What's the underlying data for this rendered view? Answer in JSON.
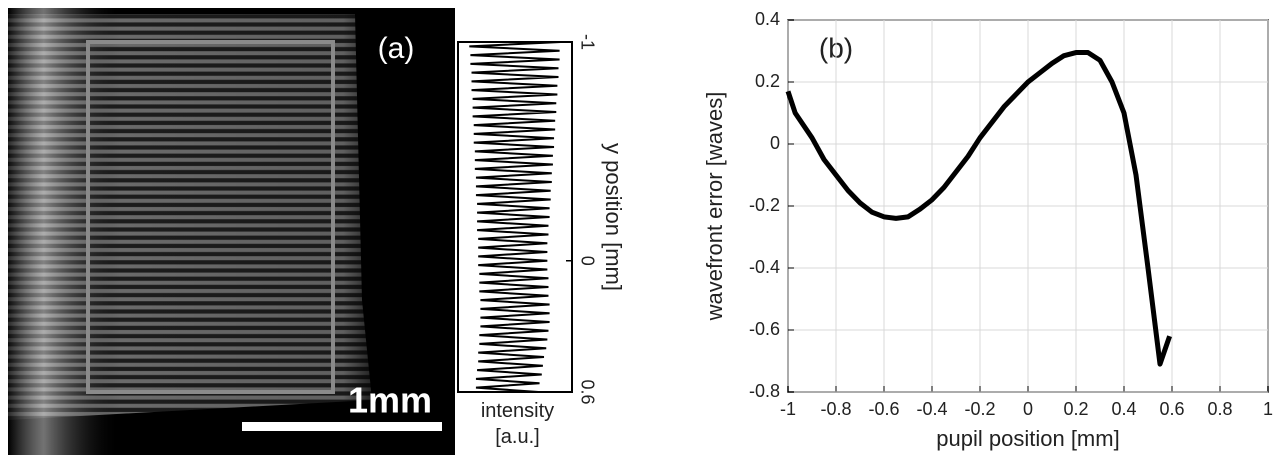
{
  "chart_data": [
    {
      "type": "line",
      "panel_label": "(a)",
      "scale_bar_label": "1mm",
      "ylabel": "y position [mm]",
      "xlabel": "intensity [a.u.]",
      "ylim": [
        -1,
        0.6
      ],
      "yticks": [
        -1,
        0,
        0.6
      ],
      "color": "#000000",
      "x": [
        -1,
        -0.98,
        -0.96,
        -0.94,
        -0.92,
        -0.9,
        -0.88,
        -0.86,
        -0.84,
        -0.82,
        -0.8,
        -0.78,
        -0.76,
        -0.74,
        -0.72,
        -0.7,
        -0.68,
        -0.66,
        -0.64,
        -0.62,
        -0.6,
        -0.58,
        -0.56,
        -0.54,
        -0.52,
        -0.5,
        -0.48,
        -0.46,
        -0.44,
        -0.42,
        -0.4,
        -0.38,
        -0.36,
        -0.34,
        -0.32,
        -0.3,
        -0.28,
        -0.26,
        -0.24,
        -0.22,
        -0.2,
        -0.18,
        -0.16,
        -0.14,
        -0.12,
        -0.1,
        -0.08,
        -0.06,
        -0.04,
        -0.02,
        0,
        0.02,
        0.04,
        0.06,
        0.08,
        0.1,
        0.12,
        0.14,
        0.16,
        0.18,
        0.2,
        0.22,
        0.24,
        0.26,
        0.28,
        0.3,
        0.32,
        0.34,
        0.36,
        0.38,
        0.4,
        0.42,
        0.44,
        0.46,
        0.48,
        0.5,
        0.52,
        0.54,
        0.56,
        0.58,
        0.6
      ],
      "values": [
        0.92,
        0.1,
        0.91,
        0.11,
        0.91,
        0.11,
        0.9,
        0.12,
        0.9,
        0.12,
        0.89,
        0.12,
        0.89,
        0.13,
        0.88,
        0.13,
        0.88,
        0.13,
        0.87,
        0.14,
        0.87,
        0.14,
        0.86,
        0.14,
        0.86,
        0.15,
        0.85,
        0.15,
        0.85,
        0.15,
        0.84,
        0.16,
        0.84,
        0.16,
        0.83,
        0.16,
        0.83,
        0.17,
        0.82,
        0.17,
        0.82,
        0.17,
        0.81,
        0.17,
        0.81,
        0.18,
        0.8,
        0.18,
        0.8,
        0.18,
        0.8,
        0.18,
        0.8,
        0.19,
        0.81,
        0.19,
        0.81,
        0.19,
        0.81,
        0.2,
        0.82,
        0.2,
        0.82,
        0.2,
        0.82,
        0.2,
        0.81,
        0.19,
        0.8,
        0.19,
        0.79,
        0.18,
        0.77,
        0.18,
        0.76,
        0.17,
        0.75,
        0.16,
        0.73,
        0.16,
        0.72
      ]
    },
    {
      "type": "line",
      "panel_label": "(b)",
      "xlabel": "pupil position [mm]",
      "ylabel": "wavefront error [waves]",
      "xlim": [
        -1,
        1
      ],
      "xticks": [
        -1,
        -0.8,
        -0.6,
        -0.4,
        -0.2,
        0,
        0.2,
        0.4,
        0.6,
        0.8,
        1
      ],
      "ylim": [
        -0.8,
        0.4
      ],
      "yticks": [
        -0.8,
        -0.6,
        -0.4,
        -0.2,
        0,
        0.2,
        0.4
      ],
      "grid": true,
      "color": "#000000",
      "x": [
        -1,
        -0.97,
        -0.9,
        -0.85,
        -0.8,
        -0.75,
        -0.7,
        -0.65,
        -0.6,
        -0.55,
        -0.5,
        -0.45,
        -0.4,
        -0.35,
        -0.3,
        -0.25,
        -0.2,
        -0.15,
        -0.1,
        -0.05,
        0,
        0.05,
        0.1,
        0.15,
        0.2,
        0.25,
        0.3,
        0.35,
        0.4,
        0.45,
        0.5,
        0.55,
        0.59
      ],
      "values": [
        0.17,
        0.1,
        0.02,
        -0.05,
        -0.1,
        -0.15,
        -0.19,
        -0.22,
        -0.235,
        -0.24,
        -0.235,
        -0.21,
        -0.18,
        -0.14,
        -0.09,
        -0.04,
        0.02,
        0.07,
        0.12,
        0.16,
        0.2,
        0.23,
        0.26,
        0.285,
        0.295,
        0.295,
        0.27,
        0.2,
        0.1,
        -0.1,
        -0.4,
        -0.71,
        -0.62
      ]
    }
  ]
}
